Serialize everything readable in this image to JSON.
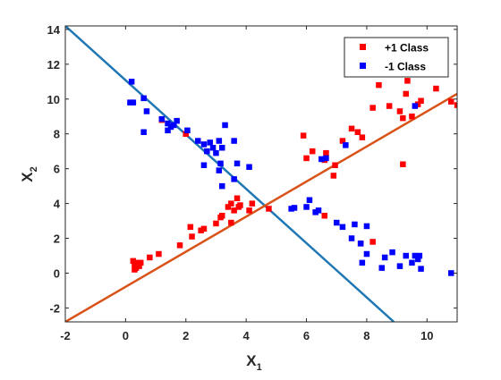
{
  "chart_data": {
    "type": "scatter",
    "title": "",
    "xlabel": "X",
    "xlabel_sub": "1",
    "ylabel": "X",
    "ylabel_sub": "2",
    "xlim": [
      -2,
      11
    ],
    "ylim": [
      -2.8,
      14.2
    ],
    "xticks": [
      -2,
      0,
      2,
      4,
      6,
      8,
      10
    ],
    "yticks": [
      -2,
      0,
      2,
      4,
      6,
      8,
      10,
      12,
      14
    ],
    "grid": false,
    "legend_position": "top-right",
    "series": [
      {
        "name": "+1 Class",
        "color": "#ff0000",
        "marker": "square",
        "points": [
          [
            0.25,
            0.7
          ],
          [
            0.3,
            0.5
          ],
          [
            0.35,
            0.3
          ],
          [
            0.4,
            0.6
          ],
          [
            0.45,
            0.4
          ],
          [
            0.5,
            0.6
          ],
          [
            0.3,
            0.2
          ],
          [
            0.8,
            0.9
          ],
          [
            1.1,
            1.1
          ],
          [
            1.8,
            1.6
          ],
          [
            2.2,
            2.1
          ],
          [
            2.15,
            2.65
          ],
          [
            2.5,
            2.45
          ],
          [
            2.6,
            2.55
          ],
          [
            3.0,
            2.85
          ],
          [
            3.2,
            3.3
          ],
          [
            3.4,
            3.8
          ],
          [
            3.5,
            4.0
          ],
          [
            3.6,
            3.6
          ],
          [
            3.7,
            4.3
          ],
          [
            3.75,
            3.8
          ],
          [
            3.8,
            3.9
          ],
          [
            3.5,
            2.9
          ],
          [
            4.1,
            3.6
          ],
          [
            4.2,
            4.0
          ],
          [
            4.75,
            3.7
          ],
          [
            3.15,
            3.2
          ],
          [
            1.2,
            8.8
          ],
          [
            2.0,
            8.0
          ],
          [
            5.9,
            7.9
          ],
          [
            6.0,
            6.6
          ],
          [
            6.2,
            7.0
          ],
          [
            6.6,
            6.5
          ],
          [
            6.65,
            6.9
          ],
          [
            6.95,
            6.2
          ],
          [
            6.9,
            5.6
          ],
          [
            7.2,
            7.6
          ],
          [
            7.5,
            8.3
          ],
          [
            7.7,
            8.1
          ],
          [
            7.85,
            7.8
          ],
          [
            8.2,
            9.5
          ],
          [
            8.4,
            10.8
          ],
          [
            8.75,
            9.6
          ],
          [
            9.1,
            9.3
          ],
          [
            9.3,
            10.3
          ],
          [
            9.2,
            8.9
          ],
          [
            9.35,
            11.05
          ],
          [
            9.5,
            9.0
          ],
          [
            9.7,
            9.7
          ],
          [
            9.8,
            9.9
          ],
          [
            10.3,
            10.6
          ],
          [
            10.8,
            9.85
          ],
          [
            11.0,
            9.65
          ],
          [
            9.2,
            6.25
          ],
          [
            8.2,
            1.8
          ],
          [
            7.8,
            1.7
          ],
          [
            6.6,
            3.3
          ]
        ]
      },
      {
        "name": "-1 Class",
        "color": "#0000ff",
        "marker": "square",
        "points": [
          [
            0.2,
            11.0
          ],
          [
            0.15,
            9.8
          ],
          [
            0.25,
            9.8
          ],
          [
            0.6,
            10.05
          ],
          [
            0.7,
            9.3
          ],
          [
            0.6,
            8.1
          ],
          [
            1.2,
            8.85
          ],
          [
            1.5,
            8.4
          ],
          [
            1.4,
            8.6
          ],
          [
            1.6,
            8.5
          ],
          [
            1.7,
            8.75
          ],
          [
            1.4,
            8.2
          ],
          [
            2.05,
            8.2
          ],
          [
            2.4,
            7.6
          ],
          [
            2.6,
            7.4
          ],
          [
            2.7,
            7.0
          ],
          [
            2.8,
            7.5
          ],
          [
            2.9,
            7.2
          ],
          [
            3.0,
            6.9
          ],
          [
            3.1,
            7.6
          ],
          [
            3.2,
            7.2
          ],
          [
            3.3,
            8.5
          ],
          [
            3.15,
            6.3
          ],
          [
            3.6,
            7.6
          ],
          [
            3.6,
            5.4
          ],
          [
            3.7,
            6.3
          ],
          [
            3.1,
            5.9
          ],
          [
            2.6,
            6.2
          ],
          [
            4.1,
            6.1
          ],
          [
            3.2,
            5.0
          ],
          [
            5.5,
            3.7
          ],
          [
            5.6,
            3.75
          ],
          [
            6.0,
            3.8
          ],
          [
            6.1,
            4.2
          ],
          [
            6.3,
            3.5
          ],
          [
            6.4,
            3.6
          ],
          [
            6.5,
            6.55
          ],
          [
            6.65,
            6.6
          ],
          [
            7.0,
            2.9
          ],
          [
            7.3,
            7.35
          ],
          [
            7.2,
            2.65
          ],
          [
            7.5,
            2.0
          ],
          [
            7.6,
            2.8
          ],
          [
            7.8,
            1.7
          ],
          [
            7.85,
            0.6
          ],
          [
            8.0,
            2.7
          ],
          [
            8.5,
            0.3
          ],
          [
            8.6,
            0.9
          ],
          [
            8.85,
            1.2
          ],
          [
            9.1,
            0.4
          ],
          [
            9.3,
            1.0
          ],
          [
            9.5,
            0.6
          ],
          [
            9.6,
            1.0
          ],
          [
            9.7,
            0.8
          ],
          [
            9.75,
            1.0
          ],
          [
            9.8,
            0.25
          ],
          [
            10.8,
            0.0
          ],
          [
            9.6,
            9.6
          ],
          [
            8.0,
            1.1
          ]
        ]
      }
    ],
    "lines": [
      {
        "color": "#1f77b4",
        "from": [
          -2,
          14.2
        ],
        "to": [
          8.9,
          -2.8
        ]
      },
      {
        "color": "#d95319",
        "from": [
          -2,
          -2.8
        ],
        "to": [
          11,
          10.3
        ]
      }
    ]
  }
}
